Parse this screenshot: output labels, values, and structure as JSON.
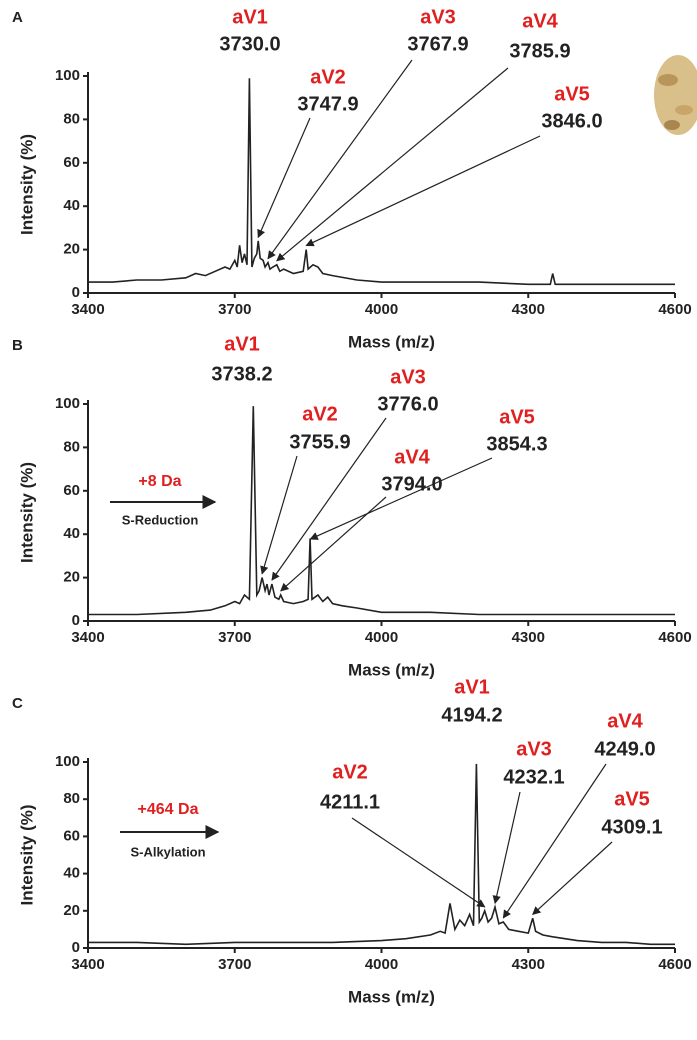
{
  "chart_data": [
    {
      "type": "line",
      "panel": "A",
      "xlabel": "Mass (m/z)",
      "ylabel": "Intensity (%)",
      "color": "#222222",
      "label_color": "#e02020",
      "xlim": [
        3400,
        4600
      ],
      "xticks": [
        3400,
        3700,
        4000,
        4300,
        4600
      ],
      "ylim": [
        0,
        100
      ],
      "yticks": [
        0,
        20,
        40,
        60,
        80,
        100
      ],
      "x": [
        3400,
        3450,
        3500,
        3550,
        3600,
        3620,
        3640,
        3660,
        3680,
        3690,
        3700,
        3705,
        3710,
        3715,
        3720,
        3725,
        3730,
        3735,
        3740,
        3745,
        3748,
        3752,
        3758,
        3762,
        3768,
        3772,
        3778,
        3786,
        3792,
        3800,
        3820,
        3840,
        3846,
        3850,
        3860,
        3870,
        3880,
        3900,
        3950,
        4000,
        4100,
        4200,
        4300,
        4345,
        4350,
        4355,
        4400,
        4500,
        4600
      ],
      "values": [
        5,
        5,
        6,
        6,
        7,
        9,
        8,
        10,
        12,
        11,
        15,
        12,
        22,
        14,
        18,
        13,
        99,
        12,
        16,
        18,
        24,
        16,
        15,
        12,
        14,
        11,
        12,
        13,
        10,
        11,
        9,
        10,
        20,
        11,
        13,
        12,
        9,
        8,
        6,
        5,
        5,
        5,
        4,
        4,
        9,
        4,
        4,
        4,
        4
      ],
      "annotations": [
        {
          "label": "aV1",
          "mass": "3730.0"
        },
        {
          "label": "aV2",
          "mass": "3747.9"
        },
        {
          "label": "aV3",
          "mass": "3767.9"
        },
        {
          "label": "aV4",
          "mass": "3785.9"
        },
        {
          "label": "aV5",
          "mass": "3846.0"
        }
      ]
    },
    {
      "type": "line",
      "panel": "B",
      "xlabel": "Mass (m/z)",
      "ylabel": "Intensity (%)",
      "color": "#222222",
      "label_color": "#e02020",
      "xlim": [
        3400,
        4600
      ],
      "xticks": [
        3400,
        3700,
        4000,
        4300,
        4600
      ],
      "ylim": [
        0,
        100
      ],
      "yticks": [
        0,
        20,
        40,
        60,
        80,
        100
      ],
      "x": [
        3400,
        3500,
        3600,
        3650,
        3680,
        3700,
        3710,
        3720,
        3730,
        3738,
        3745,
        3750,
        3756,
        3762,
        3766,
        3770,
        3776,
        3782,
        3790,
        3794,
        3800,
        3820,
        3840,
        3850,
        3854,
        3858,
        3870,
        3880,
        3890,
        3900,
        3920,
        3950,
        4000,
        4100,
        4200,
        4300,
        4400,
        4500,
        4600
      ],
      "values": [
        3,
        3,
        4,
        5,
        7,
        9,
        8,
        12,
        10,
        99,
        12,
        14,
        20,
        14,
        17,
        12,
        17,
        11,
        10,
        12,
        9,
        8,
        9,
        10,
        38,
        10,
        12,
        9,
        11,
        8,
        7,
        6,
        4,
        4,
        3,
        3,
        3,
        3,
        3
      ],
      "annotations": [
        {
          "label": "aV1",
          "mass": "3738.2"
        },
        {
          "label": "aV2",
          "mass": "3755.9"
        },
        {
          "label": "aV3",
          "mass": "3776.0"
        },
        {
          "label": "aV4",
          "mass": "3794.0"
        },
        {
          "label": "aV5",
          "mass": "3854.3"
        }
      ],
      "shift": {
        "label": "+8 Da",
        "text": "S-Reduction"
      }
    },
    {
      "type": "line",
      "panel": "C",
      "xlabel": "Mass (m/z)",
      "ylabel": "Intensity (%)",
      "color": "#222222",
      "label_color": "#e02020",
      "xlim": [
        3400,
        4600
      ],
      "xticks": [
        3400,
        3700,
        4000,
        4300,
        4600
      ],
      "ylim": [
        0,
        100
      ],
      "yticks": [
        0,
        20,
        40,
        60,
        80,
        100
      ],
      "x": [
        3400,
        3500,
        3600,
        3700,
        3800,
        3900,
        4000,
        4050,
        4100,
        4120,
        4130,
        4140,
        4150,
        4160,
        4170,
        4180,
        4188,
        4194,
        4200,
        4205,
        4211,
        4218,
        4225,
        4232,
        4240,
        4249,
        4260,
        4280,
        4300,
        4309,
        4315,
        4330,
        4350,
        4400,
        4450,
        4500,
        4550,
        4600
      ],
      "values": [
        3,
        3,
        2,
        3,
        3,
        3,
        4,
        5,
        7,
        9,
        8,
        24,
        10,
        15,
        12,
        18,
        12,
        99,
        14,
        16,
        20,
        14,
        16,
        22,
        13,
        14,
        10,
        9,
        8,
        16,
        9,
        7,
        6,
        4,
        3,
        3,
        2,
        2
      ],
      "annotations": [
        {
          "label": "aV1",
          "mass": "4194.2"
        },
        {
          "label": "aV2",
          "mass": "4211.1"
        },
        {
          "label": "aV3",
          "mass": "4232.1"
        },
        {
          "label": "aV4",
          "mass": "4249.0"
        },
        {
          "label": "aV5",
          "mass": "4309.1"
        }
      ],
      "shift": {
        "label": "+464 Da",
        "text": "S-Alkylation"
      }
    }
  ]
}
